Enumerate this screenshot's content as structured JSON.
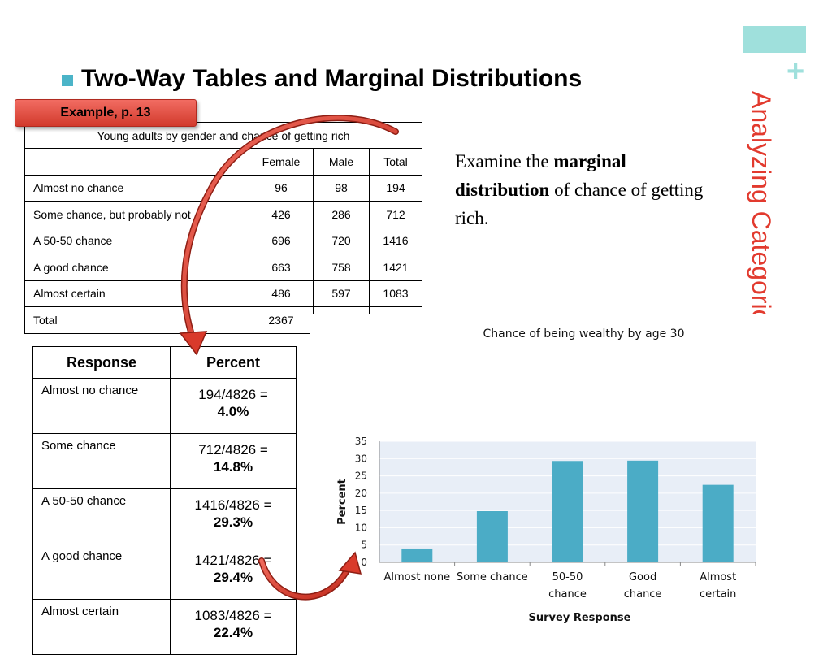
{
  "slide": {
    "title": "Two-Way Tables and Marginal Distributions",
    "side_title": "Analyzing Categorical Data",
    "plus": "+",
    "example_label": "Example, p. 13",
    "examine_text": {
      "pre": "Examine the ",
      "bold": "marginal distribution",
      "post": " of chance of getting rich."
    }
  },
  "two_way_table": {
    "caption": "Young adults by gender and chance of getting rich",
    "headers": [
      "",
      "Female",
      "Male",
      "Total"
    ],
    "rows": [
      [
        "Almost no chance",
        "96",
        "98",
        "194"
      ],
      [
        "Some chance, but probably not",
        "426",
        "286",
        "712"
      ],
      [
        "A 50-50 chance",
        "696",
        "720",
        "1416"
      ],
      [
        "A good chance",
        "663",
        "758",
        "1421"
      ],
      [
        "Almost certain",
        "486",
        "597",
        "1083"
      ],
      [
        "Total",
        "2367",
        "",
        ""
      ]
    ]
  },
  "marginal_table": {
    "headers": [
      "Response",
      "Percent"
    ],
    "rows": [
      {
        "response": "Almost no chance",
        "calc": "194/4826 =",
        "pct": "4.0%"
      },
      {
        "response": "Some chance",
        "calc": "712/4826 =",
        "pct": "14.8%"
      },
      {
        "response": "A 50-50 chance",
        "calc": "1416/4826 =",
        "pct": "29.3%"
      },
      {
        "response": "A good chance",
        "calc": "1421/4826 =",
        "pct": "29.4%"
      },
      {
        "response": "Almost certain",
        "calc": "1083/4826 =",
        "pct": "22.4%"
      }
    ]
  },
  "chart_data": {
    "type": "bar",
    "title": "Chance of being wealthy by age 30",
    "xlabel": "Survey Response",
    "ylabel": "Percent",
    "categories": [
      "Almost none",
      "Some chance",
      "50-50 chance",
      "Good chance",
      "Almost certain"
    ],
    "values": [
      4.0,
      14.8,
      29.3,
      29.4,
      22.4
    ],
    "ylim": [
      0,
      35
    ],
    "yticks": [
      0,
      5,
      10,
      15,
      20,
      25,
      30,
      35
    ],
    "grid": true,
    "legend": "none",
    "bar_color": "#4bacc6"
  },
  "colors": {
    "accent": "#9fe0dc",
    "side_title": "#e23a2e",
    "example_box": "#e0473a",
    "arrow": "#d93a2b",
    "bar": "#4bacc6"
  }
}
